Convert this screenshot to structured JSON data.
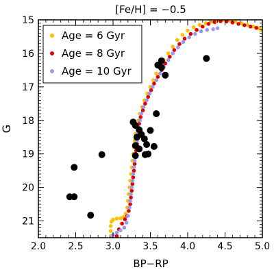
{
  "chart_data": {
    "type": "scatter",
    "title": "[Fe/H] = −0.5",
    "xlabel": "BP−RP",
    "ylabel": "G",
    "xlim": [
      2.0,
      5.0
    ],
    "ylim": [
      21.5,
      15.0
    ],
    "y_inverted": true,
    "grid": false,
    "legend_position": "top-left",
    "x_ticks": [
      "2.0",
      "2.5",
      "3.0",
      "3.5",
      "4.0",
      "4.5",
      "5.0"
    ],
    "y_ticks": [
      "15",
      "16",
      "17",
      "18",
      "19",
      "20",
      "21"
    ],
    "series": [
      {
        "name": "Age = 6 Gyr",
        "color": "#ffc000",
        "marker": "small-dot",
        "points": [
          [
            2.97,
            21.45
          ],
          [
            2.97,
            21.3
          ],
          [
            2.97,
            21.15
          ],
          [
            2.98,
            21.02
          ],
          [
            3.0,
            20.96
          ],
          [
            3.05,
            20.93
          ],
          [
            3.1,
            20.92
          ],
          [
            3.14,
            20.88
          ],
          [
            3.17,
            20.78
          ],
          [
            3.19,
            20.6
          ],
          [
            3.2,
            20.4
          ],
          [
            3.21,
            20.2
          ],
          [
            3.22,
            20.0
          ],
          [
            3.23,
            19.8
          ],
          [
            3.24,
            19.6
          ],
          [
            3.25,
            19.4
          ],
          [
            3.26,
            19.2
          ],
          [
            3.27,
            19.0
          ],
          [
            3.28,
            18.8
          ],
          [
            3.29,
            18.6
          ],
          [
            3.3,
            18.4
          ],
          [
            3.32,
            18.2
          ],
          [
            3.34,
            18.0
          ],
          [
            3.36,
            17.8
          ],
          [
            3.39,
            17.6
          ],
          [
            3.42,
            17.4
          ],
          [
            3.46,
            17.2
          ],
          [
            3.5,
            17.0
          ],
          [
            3.54,
            16.8
          ],
          [
            3.58,
            16.6
          ],
          [
            3.63,
            16.4
          ],
          [
            3.68,
            16.2
          ],
          [
            3.74,
            16.0
          ],
          [
            3.8,
            15.8
          ],
          [
            3.86,
            15.6
          ],
          [
            3.93,
            15.45
          ],
          [
            4.0,
            15.32
          ],
          [
            4.08,
            15.22
          ],
          [
            4.16,
            15.15
          ],
          [
            4.24,
            15.1
          ],
          [
            4.32,
            15.05
          ],
          [
            4.4,
            15.02
          ],
          [
            4.48,
            15.0
          ],
          [
            4.56,
            15.02
          ],
          [
            4.64,
            15.05
          ],
          [
            4.72,
            15.1
          ],
          [
            4.8,
            15.15
          ],
          [
            4.88,
            15.2
          ],
          [
            4.96,
            15.25
          ],
          [
            4.98,
            15.3
          ]
        ]
      },
      {
        "name": "Age = 8 Gyr",
        "color": "#e00000",
        "marker": "small-dot",
        "points": [
          [
            3.05,
            21.45
          ],
          [
            3.08,
            21.25
          ],
          [
            3.12,
            21.08
          ],
          [
            3.16,
            20.95
          ],
          [
            3.19,
            20.85
          ],
          [
            3.21,
            20.7
          ],
          [
            3.23,
            20.5
          ],
          [
            3.24,
            20.3
          ],
          [
            3.25,
            20.1
          ],
          [
            3.26,
            19.9
          ],
          [
            3.27,
            19.7
          ],
          [
            3.28,
            19.5
          ],
          [
            3.29,
            19.3
          ],
          [
            3.3,
            19.1
          ],
          [
            3.31,
            18.9
          ],
          [
            3.32,
            18.7
          ],
          [
            3.33,
            18.5
          ],
          [
            3.34,
            18.3
          ],
          [
            3.35,
            18.1
          ],
          [
            3.37,
            17.9
          ],
          [
            3.4,
            17.7
          ],
          [
            3.43,
            17.5
          ],
          [
            3.47,
            17.3
          ],
          [
            3.51,
            17.1
          ],
          [
            3.55,
            16.9
          ],
          [
            3.6,
            16.7
          ],
          [
            3.65,
            16.5
          ],
          [
            3.7,
            16.3
          ],
          [
            3.76,
            16.1
          ],
          [
            3.82,
            15.9
          ],
          [
            3.89,
            15.72
          ],
          [
            3.96,
            15.56
          ],
          [
            4.04,
            15.42
          ],
          [
            4.12,
            15.3
          ],
          [
            4.2,
            15.2
          ],
          [
            4.28,
            15.12
          ],
          [
            4.36,
            15.07
          ],
          [
            4.44,
            15.04
          ],
          [
            4.52,
            15.05
          ],
          [
            4.6,
            15.08
          ],
          [
            4.68,
            15.12
          ],
          [
            4.76,
            15.16
          ],
          [
            4.84,
            15.2
          ],
          [
            4.92,
            15.24
          ]
        ]
      },
      {
        "name": "Age = 10 Gyr",
        "color": "#9999ee",
        "marker": "small-dot",
        "points": [
          [
            2.97,
            21.5
          ],
          [
            3.0,
            21.42
          ],
          [
            3.05,
            21.35
          ],
          [
            3.1,
            21.28
          ],
          [
            3.15,
            21.2
          ],
          [
            3.18,
            21.05
          ],
          [
            3.2,
            20.85
          ],
          [
            3.22,
            20.6
          ],
          [
            3.23,
            20.4
          ],
          [
            3.24,
            20.2
          ],
          [
            3.25,
            20.0
          ],
          [
            3.26,
            19.8
          ],
          [
            3.27,
            19.6
          ],
          [
            3.28,
            19.4
          ],
          [
            3.29,
            19.2
          ],
          [
            3.3,
            19.0
          ],
          [
            3.31,
            18.8
          ],
          [
            3.32,
            18.6
          ],
          [
            3.33,
            18.4
          ],
          [
            3.34,
            18.2
          ],
          [
            3.36,
            18.0
          ],
          [
            3.38,
            17.8
          ],
          [
            3.41,
            17.6
          ],
          [
            3.45,
            17.4
          ],
          [
            3.49,
            17.2
          ],
          [
            3.53,
            17.0
          ],
          [
            3.58,
            16.8
          ],
          [
            3.63,
            16.6
          ],
          [
            3.68,
            16.4
          ],
          [
            3.74,
            16.2
          ],
          [
            3.8,
            16.0
          ],
          [
            3.87,
            15.82
          ],
          [
            3.94,
            15.66
          ],
          [
            4.02,
            15.52
          ],
          [
            4.1,
            15.42
          ],
          [
            4.18,
            15.34
          ],
          [
            4.26,
            15.3
          ],
          [
            4.34,
            15.28
          ],
          [
            4.4,
            15.25
          ]
        ]
      },
      {
        "name": "",
        "color": "#000000",
        "marker": "large-dot",
        "points": [
          [
            2.42,
            20.28
          ],
          [
            2.48,
            20.28
          ],
          [
            2.48,
            19.4
          ],
          [
            2.7,
            20.83
          ],
          [
            2.85,
            19.02
          ],
          [
            3.27,
            18.05
          ],
          [
            3.3,
            18.15
          ],
          [
            3.32,
            18.5
          ],
          [
            3.35,
            18.28
          ],
          [
            3.38,
            18.42
          ],
          [
            3.42,
            18.55
          ],
          [
            3.45,
            18.72
          ],
          [
            3.3,
            18.75
          ],
          [
            3.35,
            18.85
          ],
          [
            3.3,
            19.05
          ],
          [
            3.43,
            19.02
          ],
          [
            3.47,
            19.0
          ],
          [
            3.5,
            18.3
          ],
          [
            3.55,
            18.78
          ],
          [
            3.58,
            17.8
          ],
          [
            3.6,
            16.35
          ],
          [
            3.65,
            16.22
          ],
          [
            3.7,
            16.65
          ],
          [
            3.65,
            16.42
          ],
          [
            4.25,
            16.15
          ]
        ]
      }
    ]
  }
}
